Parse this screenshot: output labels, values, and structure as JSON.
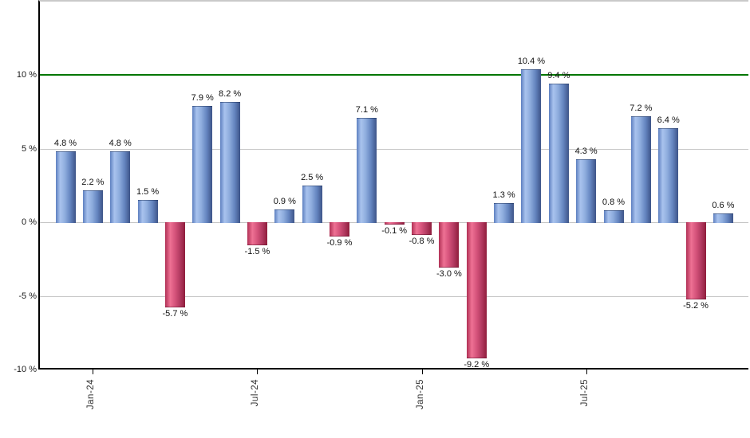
{
  "chart_data": {
    "type": "bar",
    "description": "Monthly returns bar chart",
    "unit": "%",
    "ylim": [
      -10,
      15
    ],
    "grid": true,
    "y_ticks": [
      {
        "label": "10 %",
        "value": 10
      },
      {
        "label": "5 %",
        "value": 5
      },
      {
        "label": "0 %",
        "value": 0
      },
      {
        "label": "-5 %",
        "value": -5
      },
      {
        "label": "-10 %",
        "value": -10
      }
    ],
    "x_ticks": [
      {
        "label": "Jan-24",
        "bar_index": 1
      },
      {
        "label": "Jul-24",
        "bar_index": 7
      },
      {
        "label": "Jan-25",
        "bar_index": 13
      },
      {
        "label": "Jul-25",
        "bar_index": 19
      }
    ],
    "reference_line": {
      "value": 10,
      "color": "#007600"
    },
    "bars": [
      {
        "value": 4.8,
        "label": "4.8 %"
      },
      {
        "value": 2.2,
        "label": "2.2 %"
      },
      {
        "value": 4.8,
        "label": "4.8 %"
      },
      {
        "value": 1.5,
        "label": "1.5 %"
      },
      {
        "value": -5.7,
        "label": "-5.7 %"
      },
      {
        "value": 7.9,
        "label": "7.9 %"
      },
      {
        "value": 8.2,
        "label": "8.2 %"
      },
      {
        "value": -1.5,
        "label": "-1.5 %"
      },
      {
        "value": 0.9,
        "label": "0.9 %"
      },
      {
        "value": 2.5,
        "label": "2.5 %"
      },
      {
        "value": -0.9,
        "label": "-0.9 %"
      },
      {
        "value": 7.1,
        "label": "7.1 %"
      },
      {
        "value": -0.1,
        "label": "-0.1 %"
      },
      {
        "value": -0.8,
        "label": "-0.8 %"
      },
      {
        "value": -3.0,
        "label": "-3.0 %"
      },
      {
        "value": -9.2,
        "label": "-9.2 %"
      },
      {
        "value": 1.3,
        "label": "1.3 %"
      },
      {
        "value": 10.4,
        "label": "10.4 %"
      },
      {
        "value": 9.4,
        "label": "9.4 %"
      },
      {
        "value": 4.3,
        "label": "4.3 %"
      },
      {
        "value": 0.8,
        "label": "0.8 %"
      },
      {
        "value": 7.2,
        "label": "7.2 %"
      },
      {
        "value": 6.4,
        "label": "6.4 %"
      },
      {
        "value": -5.2,
        "label": "-5.2 %"
      },
      {
        "value": 0.6,
        "label": "0.6 %"
      }
    ],
    "colors": {
      "positive_gradient": [
        "#5e80c0",
        "#a9c3ee",
        "#8fadde",
        "#6585c0",
        "#3d5488"
      ],
      "positive_stops": [
        0,
        22,
        45,
        72,
        100
      ],
      "negative_gradient": [
        "#b03055",
        "#ee7194",
        "#d5537b",
        "#b23a60",
        "#8f1d3c"
      ],
      "negative_stops": [
        0,
        25,
        50,
        75,
        100
      ],
      "gridline": "#c6c6c6",
      "axis": "#000000",
      "top_border": "#c9c9c9",
      "reference_line": "#007600",
      "value_label_text": "#111111",
      "tick_label_text": "#333333"
    },
    "legend": {
      "position": "none"
    }
  }
}
